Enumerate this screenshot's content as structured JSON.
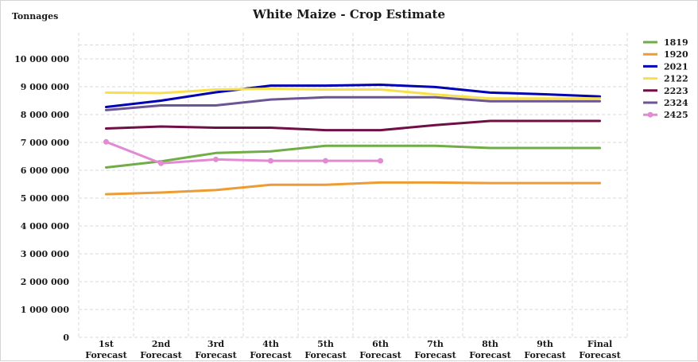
{
  "chart_data": {
    "type": "line",
    "title": "White Maize - Crop Estimate",
    "ylabel": "Tonnages",
    "xlabel": "",
    "ylim": [
      0,
      10500000
    ],
    "yticks": [
      0,
      1000000,
      2000000,
      3000000,
      4000000,
      5000000,
      6000000,
      7000000,
      8000000,
      9000000,
      10000000
    ],
    "ytick_labels": [
      "0",
      "1 000 000",
      "2 000 000",
      "3 000 000",
      "4 000 000",
      "5 000 000",
      "6 000 000",
      "7 000 000",
      "8 000 000",
      "9 000 000",
      "10 000 000"
    ],
    "categories": [
      [
        "1st",
        "Forecast"
      ],
      [
        "2nd",
        "Forecast"
      ],
      [
        "3rd",
        "Forecast"
      ],
      [
        "4th",
        "Forecast"
      ],
      [
        "5th",
        "Forecast"
      ],
      [
        "6th",
        "Forecast"
      ],
      [
        "7th",
        "Forecast"
      ],
      [
        "8th",
        "Forecast"
      ],
      [
        "9th",
        "Forecast"
      ],
      [
        "Final",
        "Forecast"
      ]
    ],
    "grid": true,
    "legend_position": "right",
    "series": [
      {
        "name": "1819",
        "color": "#70ad47",
        "marker": false,
        "values": [
          6100000,
          6320000,
          6620000,
          6680000,
          6880000,
          6880000,
          6880000,
          6800000,
          6800000,
          6800000
        ]
      },
      {
        "name": "1920",
        "color": "#ed9b33",
        "marker": false,
        "values": [
          5140000,
          5200000,
          5290000,
          5480000,
          5480000,
          5560000,
          5560000,
          5540000,
          5540000,
          5540000
        ]
      },
      {
        "name": "2021",
        "color": "#0000b4",
        "marker": false,
        "values": [
          8270000,
          8500000,
          8800000,
          9040000,
          9040000,
          9070000,
          8990000,
          8790000,
          8730000,
          8650000
        ]
      },
      {
        "name": "2122",
        "color": "#f7e04c",
        "marker": false,
        "values": [
          8790000,
          8770000,
          8900000,
          8930000,
          8900000,
          8900000,
          8720000,
          8580000,
          8580000,
          8580000
        ]
      },
      {
        "name": "2223",
        "color": "#6f0f45",
        "marker": false,
        "values": [
          7500000,
          7570000,
          7530000,
          7530000,
          7440000,
          7440000,
          7620000,
          7770000,
          7770000,
          7770000
        ]
      },
      {
        "name": "2324",
        "color": "#6b5595",
        "marker": false,
        "values": [
          8160000,
          8330000,
          8330000,
          8540000,
          8620000,
          8620000,
          8620000,
          8480000,
          8480000,
          8480000
        ]
      },
      {
        "name": "2425",
        "color": "#e28ad3",
        "marker": true,
        "values": [
          7020000,
          6250000,
          6390000,
          6340000,
          6340000,
          6340000,
          null,
          null,
          null,
          null
        ]
      }
    ]
  }
}
